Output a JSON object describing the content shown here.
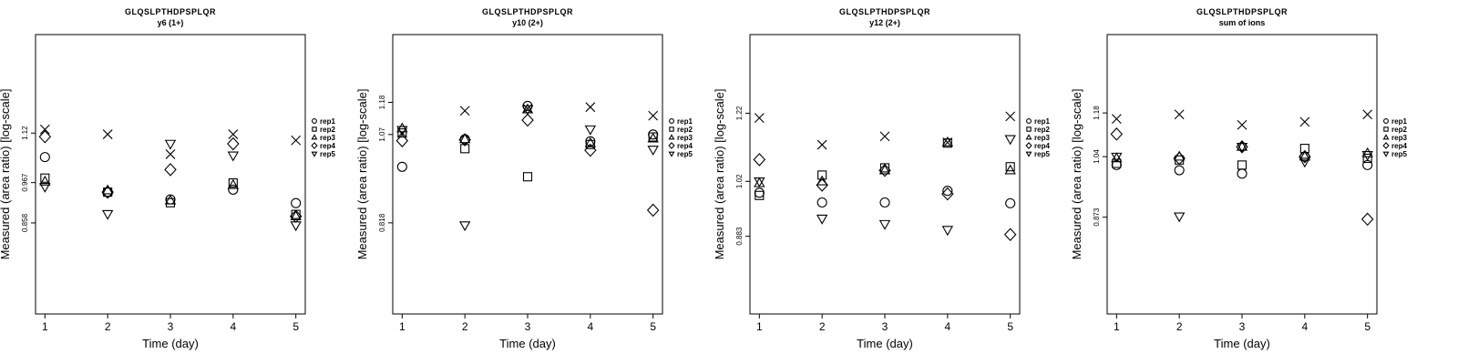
{
  "chart_data": [
    {
      "type": "scatter",
      "title": "GLQSLPTHDPSPLQR",
      "subtitle": "y6 (1+)",
      "xlabel": "Time (day)",
      "ylabel": "Measured (area ratio) [log-scale]",
      "y_scale": "log",
      "x_ticks": [
        1,
        2,
        3,
        4,
        5
      ],
      "y_ticks": [
        0.858,
        0.967,
        1.12
      ],
      "xlim": [
        0.85,
        5.15
      ],
      "ylim": [
        0.655,
        1.5
      ],
      "legend_position": "right",
      "series": [
        {
          "name": "rep1",
          "marker": "circle",
          "x": [
            1,
            2,
            3,
            4,
            5
          ],
          "y": [
            1.043,
            0.94,
            0.92,
            0.947,
            0.91
          ]
        },
        {
          "name": "rep2",
          "marker": "square",
          "x": [
            1,
            2,
            3,
            4,
            5
          ],
          "y": [
            0.98,
            0.94,
            0.911,
            0.966,
            0.88
          ]
        },
        {
          "name": "rep3",
          "marker": "triangle",
          "x": [
            1,
            2,
            3,
            4,
            5
          ],
          "y": [
            0.97,
            0.945,
            0.917,
            0.96,
            0.875
          ]
        },
        {
          "name": "rep4",
          "marker": "diamond",
          "x": [
            1,
            2,
            3,
            4,
            5
          ],
          "y": [
            1.108,
            0.94,
            1.005,
            1.085,
            0.875
          ]
        },
        {
          "name": "rep5",
          "marker": "triangle-down",
          "x": [
            1,
            2,
            3,
            4,
            5
          ],
          "y": [
            0.955,
            0.881,
            1.085,
            1.048,
            0.852
          ]
        },
        {
          "name": "",
          "marker": "cross",
          "x": [
            1,
            2,
            3,
            4,
            5
          ],
          "y": [
            1.132,
            1.116,
            1.052,
            1.116,
            1.096
          ]
        }
      ]
    },
    {
      "type": "scatter",
      "title": "GLQSLPTHDPSPLQR",
      "subtitle": "y10 (2+)",
      "xlabel": "Time (day)",
      "ylabel": "Measured (area ratio) [log-scale]",
      "y_scale": "log",
      "x_ticks": [
        1,
        2,
        3,
        4,
        5
      ],
      "y_ticks": [
        0.818,
        1.07,
        1.18
      ],
      "xlim": [
        0.85,
        5.15
      ],
      "ylim": [
        0.62,
        1.45
      ],
      "legend_position": "right",
      "series": [
        {
          "name": "rep1",
          "marker": "circle",
          "x": [
            1,
            2,
            3,
            4,
            5
          ],
          "y": [
            0.97,
            1.055,
            1.167,
            1.048,
            1.07
          ]
        },
        {
          "name": "rep2",
          "marker": "square",
          "x": [
            1,
            2,
            3,
            4,
            5
          ],
          "y": [
            1.075,
            1.025,
            0.941,
            1.038,
            1.062
          ]
        },
        {
          "name": "rep3",
          "marker": "triangle",
          "x": [
            1,
            2,
            3,
            4,
            5
          ],
          "y": [
            1.09,
            1.055,
            1.155,
            1.042,
            1.057
          ]
        },
        {
          "name": "rep4",
          "marker": "diamond",
          "x": [
            1,
            2,
            3,
            4,
            5
          ],
          "y": [
            1.05,
            1.053,
            1.118,
            1.02,
            0.85
          ]
        },
        {
          "name": "rep5",
          "marker": "triangle-down",
          "x": [
            1,
            2,
            3,
            4,
            5
          ],
          "y": [
            1.085,
            0.812,
            1.155,
            1.087,
            1.022
          ]
        },
        {
          "name": "",
          "marker": "cross",
          "x": [
            1,
            2,
            3,
            4,
            5
          ],
          "y": [
            1.075,
            1.15,
            1.158,
            1.163,
            1.133
          ]
        }
      ]
    },
    {
      "type": "scatter",
      "title": "GLQSLPTHDPSPLQR",
      "subtitle": "y12 (2+)",
      "xlabel": "Time (day)",
      "ylabel": "Measured (area ratio) [log-scale]",
      "y_scale": "log",
      "x_ticks": [
        1,
        2,
        3,
        4,
        5
      ],
      "y_ticks": [
        0.883,
        1.02,
        1.22
      ],
      "xlim": [
        0.85,
        5.15
      ],
      "ylim": [
        0.72,
        1.5
      ],
      "legend_position": "right",
      "series": [
        {
          "name": "rep1",
          "marker": "circle",
          "x": [
            1,
            2,
            3,
            4,
            5
          ],
          "y": [
            0.99,
            0.965,
            0.965,
            0.995,
            0.963
          ]
        },
        {
          "name": "rep2",
          "marker": "square",
          "x": [
            1,
            2,
            3,
            4,
            5
          ],
          "y": [
            0.983,
            1.037,
            1.057,
            1.128,
            1.06
          ]
        },
        {
          "name": "rep3",
          "marker": "triangle",
          "x": [
            1,
            2,
            3,
            4,
            5
          ],
          "y": [
            1.015,
            1.02,
            1.05,
            1.13,
            1.05
          ]
        },
        {
          "name": "rep4",
          "marker": "diamond",
          "x": [
            1,
            2,
            3,
            4,
            5
          ],
          "y": [
            1.08,
            1.01,
            1.05,
            0.987,
            0.887
          ]
        },
        {
          "name": "rep5",
          "marker": "triangle-down",
          "x": [
            1,
            2,
            3,
            4,
            5
          ],
          "y": [
            1.02,
            0.925,
            0.912,
            0.898,
            1.14
          ]
        },
        {
          "name": "",
          "marker": "cross",
          "x": [
            1,
            2,
            3,
            4,
            5
          ],
          "y": [
            1.205,
            1.123,
            1.148,
            1.13,
            1.21
          ]
        }
      ]
    },
    {
      "type": "scatter",
      "title": "GLQSLPTHDPSPLQR",
      "subtitle": "sum of ions",
      "xlabel": "Time (day)",
      "ylabel": "Measured (area ratio) [log-scale]",
      "y_scale": "log",
      "x_ticks": [
        1,
        2,
        3,
        4,
        5
      ],
      "y_ticks": [
        0.873,
        1.04,
        1.18
      ],
      "xlim": [
        0.85,
        5.15
      ],
      "ylim": [
        0.66,
        1.48
      ],
      "legend_position": "right",
      "series": [
        {
          "name": "rep1",
          "marker": "circle",
          "x": [
            1,
            2,
            3,
            4,
            5
          ],
          "y": [
            1.015,
            1.0,
            0.99,
            1.04,
            1.015
          ]
        },
        {
          "name": "rep2",
          "marker": "square",
          "x": [
            1,
            2,
            3,
            4,
            5
          ],
          "y": [
            1.02,
            1.03,
            1.015,
            1.065,
            1.035
          ]
        },
        {
          "name": "rep3",
          "marker": "triangle",
          "x": [
            1,
            2,
            3,
            4,
            5
          ],
          "y": [
            1.035,
            1.04,
            1.07,
            1.04,
            1.05
          ]
        },
        {
          "name": "rep4",
          "marker": "diamond",
          "x": [
            1,
            2,
            3,
            4,
            5
          ],
          "y": [
            1.11,
            1.035,
            1.07,
            1.04,
            0.868
          ]
        },
        {
          "name": "rep5",
          "marker": "triangle-down",
          "x": [
            1,
            2,
            3,
            4,
            5
          ],
          "y": [
            1.04,
            0.875,
            1.07,
            1.025,
            1.045
          ]
        },
        {
          "name": "",
          "marker": "cross",
          "x": [
            1,
            2,
            3,
            4,
            5
          ],
          "y": [
            1.16,
            1.175,
            1.14,
            1.15,
            1.175
          ]
        }
      ]
    }
  ]
}
